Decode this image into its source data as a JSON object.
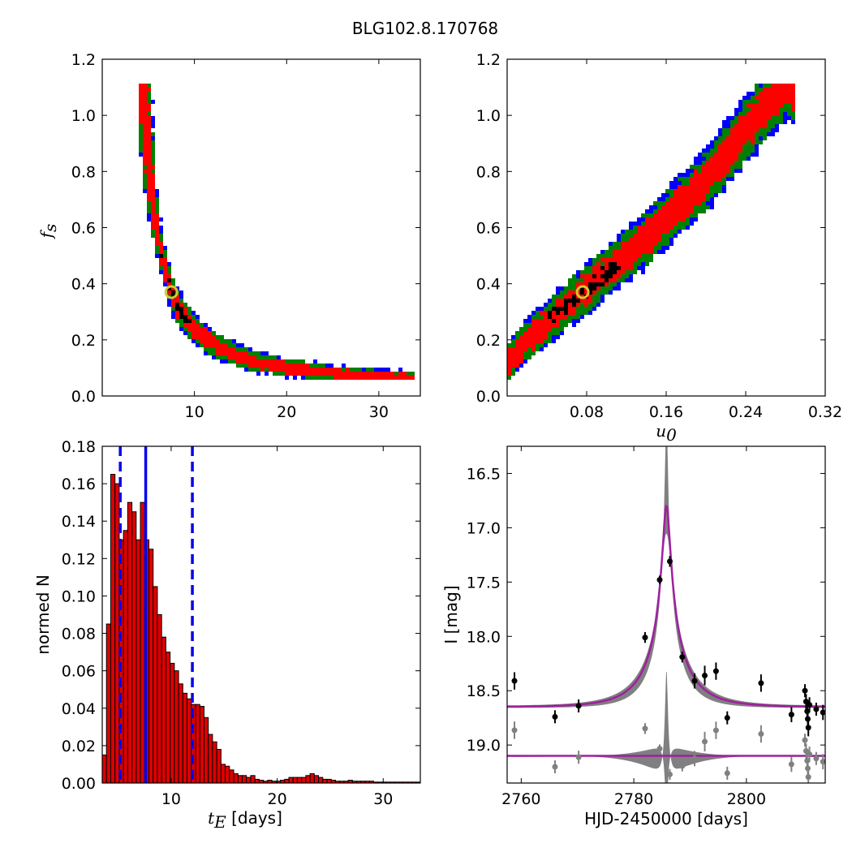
{
  "figure": {
    "title": "BLG102.8.170768"
  },
  "chart_data": [
    {
      "type": "heatmap",
      "xlabel": "",
      "ylabel": "f",
      "ylabel_sub": "s",
      "xlim": [
        0,
        34.5
      ],
      "ylim": [
        0,
        1.2
      ],
      "xticks": [
        10,
        20,
        30
      ],
      "yticks": [
        "0.0",
        "0.2",
        "0.4",
        "0.6",
        "0.8",
        "1.0",
        "1.2"
      ],
      "colors": {
        "outer": "#0000ff",
        "mid": "#008000",
        "inner": "#ff0000",
        "core": "#000000",
        "marker": "#cccc33"
      },
      "best_fit": {
        "x": 7.5,
        "y": 0.37
      },
      "ridge_points": [
        [
          4.4,
          1.11
        ],
        [
          4.6,
          1.0
        ],
        [
          4.8,
          0.9
        ],
        [
          5.1,
          0.8
        ],
        [
          5.4,
          0.7
        ],
        [
          5.8,
          0.6
        ],
        [
          6.4,
          0.5
        ],
        [
          7.0,
          0.43
        ],
        [
          7.5,
          0.37
        ],
        [
          8.2,
          0.32
        ],
        [
          9.0,
          0.28
        ],
        [
          10.0,
          0.24
        ],
        [
          11.5,
          0.2
        ],
        [
          13.0,
          0.17
        ],
        [
          15.0,
          0.14
        ],
        [
          17.0,
          0.12
        ],
        [
          20.0,
          0.1
        ],
        [
          23.0,
          0.09
        ],
        [
          27.0,
          0.075
        ],
        [
          30.0,
          0.07
        ],
        [
          33.5,
          0.065
        ]
      ]
    },
    {
      "type": "heatmap",
      "xlabel": "u",
      "xlabel_sub": "0",
      "ylabel": "",
      "xlim": [
        0,
        0.32
      ],
      "ylim": [
        0,
        1.2
      ],
      "xticks": [
        "0.08",
        "0.16",
        "0.24",
        "0.32"
      ],
      "yticks": [
        "0.0",
        "0.2",
        "0.4",
        "0.6",
        "0.8",
        "1.0",
        "1.2"
      ],
      "best_fit": {
        "x": 0.076,
        "y": 0.37
      },
      "ridge_points": [
        [
          0.0,
          0.11
        ],
        [
          0.02,
          0.2
        ],
        [
          0.04,
          0.26
        ],
        [
          0.06,
          0.32
        ],
        [
          0.076,
          0.37
        ],
        [
          0.1,
          0.44
        ],
        [
          0.12,
          0.5
        ],
        [
          0.14,
          0.56
        ],
        [
          0.16,
          0.63
        ],
        [
          0.18,
          0.7
        ],
        [
          0.2,
          0.77
        ],
        [
          0.22,
          0.86
        ],
        [
          0.24,
          0.95
        ],
        [
          0.26,
          1.03
        ],
        [
          0.28,
          1.1
        ]
      ]
    },
    {
      "type": "bar",
      "xlabel": "t",
      "xlabel_sub": "E",
      "xlabel_unit": " [days]",
      "ylabel": "normed N",
      "xlim": [
        3.5,
        33.5
      ],
      "ylim": [
        0,
        0.18
      ],
      "xticks": [
        10,
        20,
        30
      ],
      "yticks": [
        "0.00",
        "0.02",
        "0.04",
        "0.06",
        "0.08",
        "0.10",
        "0.12",
        "0.14",
        "0.16",
        "0.18"
      ],
      "bin_start": 3.5,
      "bin_width": 0.4,
      "values": [
        0.015,
        0.085,
        0.165,
        0.16,
        0.13,
        0.135,
        0.15,
        0.145,
        0.13,
        0.15,
        0.13,
        0.125,
        0.105,
        0.09,
        0.078,
        0.07,
        0.064,
        0.06,
        0.053,
        0.048,
        0.045,
        0.042,
        0.042,
        0.041,
        0.035,
        0.026,
        0.022,
        0.018,
        0.01,
        0.009,
        0.007,
        0.005,
        0.004,
        0.004,
        0.003,
        0.004,
        0.002,
        0.0015,
        0.001,
        0.0015,
        0.001,
        0.001,
        0.0015,
        0.002,
        0.003,
        0.003,
        0.003,
        0.003,
        0.004,
        0.005,
        0.004,
        0.003,
        0.002,
        0.002,
        0.0015,
        0.001,
        0.001,
        0.001,
        0.0015,
        0.001,
        0.001,
        0.001,
        0.001,
        0.001,
        0.0005,
        0.0005,
        0.0005,
        0.0005,
        0.0005,
        0.0005,
        0.0005,
        0.0005,
        0.0005,
        0.0005,
        0.0005
      ],
      "bar_color": "#dd0000",
      "median": 7.6,
      "interval": [
        5.2,
        12.0
      ],
      "line_color": "#0000ee"
    },
    {
      "type": "line",
      "xlabel": "HJD-2450000 [days]",
      "ylabel": "I [mag]",
      "xlim": [
        2757.5,
        2814
      ],
      "ylim": [
        19.35,
        16.25
      ],
      "xticks": [
        2760,
        2780,
        2800
      ],
      "yticks": [
        "16.5",
        "17.0",
        "17.5",
        "18.0",
        "18.5",
        "19.0"
      ],
      "model": {
        "t0": 2785.8,
        "tE": 7.6,
        "u0": 0.076,
        "fs": 0.37,
        "base_mag": 18.65,
        "color": "#a020a0"
      },
      "residual_offset": 19.1,
      "data": [
        {
          "t": 2758.8,
          "mag": 18.41,
          "err": 0.08
        },
        {
          "t": 2766.0,
          "mag": 18.74,
          "err": 0.06
        },
        {
          "t": 2770.2,
          "mag": 18.64,
          "err": 0.06
        },
        {
          "t": 2782.0,
          "mag": 18.01,
          "err": 0.05
        },
        {
          "t": 2784.6,
          "mag": 17.48,
          "err": 0.04
        },
        {
          "t": 2786.4,
          "mag": 17.31,
          "err": 0.05
        },
        {
          "t": 2788.6,
          "mag": 18.19,
          "err": 0.05
        },
        {
          "t": 2790.8,
          "mag": 18.41,
          "err": 0.07
        },
        {
          "t": 2792.6,
          "mag": 18.36,
          "err": 0.09
        },
        {
          "t": 2794.6,
          "mag": 18.32,
          "err": 0.08
        },
        {
          "t": 2796.6,
          "mag": 18.75,
          "err": 0.06
        },
        {
          "t": 2802.6,
          "mag": 18.43,
          "err": 0.08
        },
        {
          "t": 2808.0,
          "mag": 18.72,
          "err": 0.07
        },
        {
          "t": 2810.4,
          "mag": 18.5,
          "err": 0.06
        },
        {
          "t": 2810.6,
          "mag": 18.6,
          "err": 0.07
        },
        {
          "t": 2810.8,
          "mag": 18.69,
          "err": 0.08
        },
        {
          "t": 2810.9,
          "mag": 18.76,
          "err": 0.07
        },
        {
          "t": 2811.0,
          "mag": 18.84,
          "err": 0.08
        },
        {
          "t": 2811.2,
          "mag": 18.63,
          "err": 0.07
        },
        {
          "t": 2812.4,
          "mag": 18.67,
          "err": 0.06
        },
        {
          "t": 2813.6,
          "mag": 18.7,
          "err": 0.07
        }
      ]
    }
  ]
}
